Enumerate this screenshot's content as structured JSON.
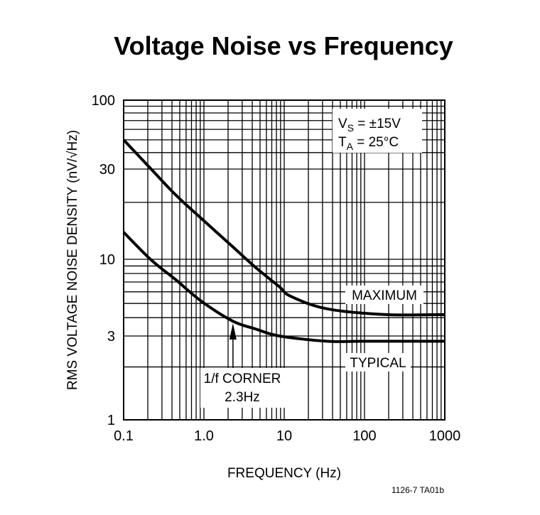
{
  "chart_data": {
    "type": "line",
    "title": "Voltage Noise vs Frequency",
    "xlabel": "FREQUENCY (Hz)",
    "ylabel": "RMS VOLTAGE NOISE DENSITY (nV/√Hz)",
    "x_scale": "log",
    "y_scale": "log",
    "xlim": [
      0.1,
      1000
    ],
    "ylim": [
      1,
      100
    ],
    "grid": true,
    "x_ticks": [
      "0.1",
      "1.0",
      "10",
      "100",
      "1000"
    ],
    "x_tick_values": [
      0.1,
      1,
      10,
      100,
      1000
    ],
    "y_ticks": [
      "1",
      "3",
      "10",
      "30",
      "100"
    ],
    "y_tick_values": [
      1,
      3,
      10,
      30,
      100
    ],
    "conditions": {
      "line1_main": "V",
      "line1_sub": "S",
      "line1_rest": " = ±15V",
      "line2_main": "T",
      "line2_sub": "A",
      "line2_rest": " = 25°C"
    },
    "series": [
      {
        "name": "MAXIMUM",
        "x": [
          0.1,
          0.22,
          0.44,
          0.92,
          2.26,
          4.4,
          8.7,
          12,
          34,
          185,
          1000
        ],
        "y": [
          50,
          30,
          22,
          16.5,
          11.7,
          8.8,
          6.5,
          5.6,
          4.6,
          4.2,
          4.2
        ]
      },
      {
        "name": "TYPICAL",
        "x": [
          0.1,
          0.22,
          0.44,
          0.92,
          2.26,
          4.4,
          8.7,
          34,
          100,
          1000
        ],
        "y": [
          13.9,
          9.9,
          7.3,
          5.2,
          3.8,
          3.35,
          3.0,
          2.8,
          2.8,
          2.8
        ]
      }
    ],
    "annotations": [
      {
        "line1": "1/f CORNER",
        "line2": "2.3Hz",
        "points_to_x": 2.3
      }
    ],
    "footer": "1126-7 TA01b",
    "color": "#000000"
  }
}
